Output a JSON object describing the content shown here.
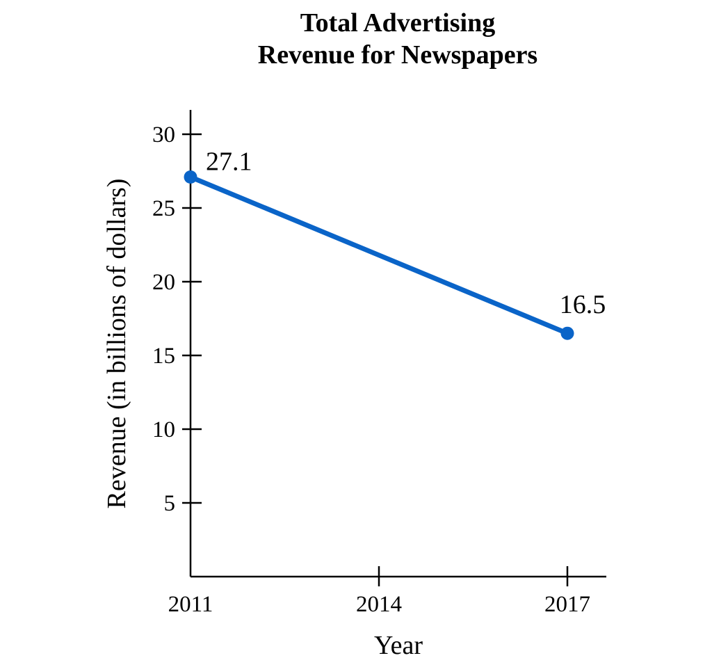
{
  "chart_data": {
    "type": "line",
    "title": [
      "Total Advertising",
      "Revenue for Newspapers"
    ],
    "xlabel": "Year",
    "ylabel": "Revenue (in billions of dollars)",
    "x_ticks": [
      "2011",
      "2014",
      "2017"
    ],
    "y_ticks": [
      5,
      10,
      15,
      20,
      25,
      30
    ],
    "xlim": [
      2011,
      2017.6
    ],
    "ylim": [
      0,
      31.5
    ],
    "grid": false,
    "series": [
      {
        "x": [
          2011,
          2017
        ],
        "values": [
          27.1,
          16.5
        ],
        "data_labels": [
          "27.1",
          "16.5"
        ],
        "color": "#0a64c8"
      }
    ]
  }
}
